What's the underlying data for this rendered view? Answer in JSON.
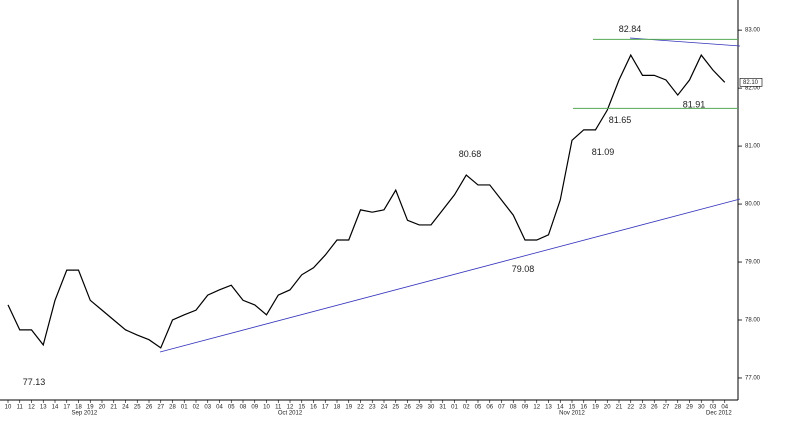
{
  "chart_data": {
    "type": "line",
    "categories": [
      "10",
      "11",
      "12",
      "13",
      "14",
      "17",
      "18",
      "19",
      "20",
      "21",
      "24",
      "25",
      "26",
      "27",
      "28",
      "01",
      "02",
      "03",
      "04",
      "05",
      "08",
      "09",
      "10",
      "11",
      "12",
      "15",
      "16",
      "17",
      "18",
      "19",
      "22",
      "23",
      "24",
      "25",
      "26",
      "29",
      "30",
      "31",
      "01",
      "02",
      "05",
      "06",
      "07",
      "08",
      "09",
      "12",
      "13",
      "14",
      "15",
      "16",
      "19",
      "20",
      "21",
      "22",
      "23",
      "26",
      "27",
      "28",
      "29",
      "30",
      "03",
      "04"
    ],
    "month_labels": [
      "Sep 2012",
      "Oct 2012",
      "Nov 2012",
      "Dec 2012"
    ],
    "series": [
      {
        "color": "#000000",
        "values": [
          78.26,
          77.83,
          77.83,
          77.57,
          78.34,
          78.86,
          78.86,
          78.34,
          78.17,
          78.0,
          77.83,
          77.74,
          77.66,
          77.52,
          78.0,
          78.09,
          78.17,
          78.43,
          78.52,
          78.6,
          78.34,
          78.26,
          78.09,
          78.43,
          78.52,
          78.78,
          78.9,
          79.12,
          79.38,
          79.38,
          79.9,
          79.86,
          79.9,
          80.24,
          79.72,
          79.64,
          79.64,
          79.9,
          80.16,
          80.5,
          80.33,
          80.33,
          80.07,
          79.81,
          79.38,
          79.38,
          79.47,
          80.07,
          81.1,
          81.28,
          81.28,
          81.62,
          82.14,
          82.57,
          82.22,
          82.22,
          82.14,
          81.88,
          82.14,
          82.57,
          82.31,
          82.1
        ]
      }
    ],
    "annotations": [
      77.13,
      80.68,
      79.08,
      81.09,
      81.65,
      82.84,
      81.91
    ],
    "last_price": {
      "value": 82.1,
      "label": "82.10"
    },
    "ylim": [
      76.62,
      83.52
    ],
    "yticks": [
      {
        "value": 77,
        "label": "77.00"
      },
      {
        "value": 78,
        "label": "78.00"
      },
      {
        "value": 79,
        "label": "79.00"
      },
      {
        "value": 80,
        "label": "80.00"
      },
      {
        "value": 81,
        "label": "81.00"
      },
      {
        "value": 82,
        "label": "82.00"
      },
      {
        "value": 83,
        "label": "83.00"
      }
    ]
  }
}
